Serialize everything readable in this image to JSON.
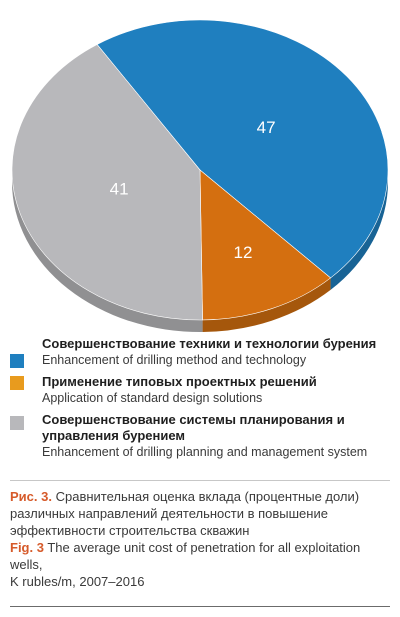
{
  "chart_data": {
    "type": "pie",
    "values": [
      47,
      12,
      41
    ],
    "labels": [
      "47",
      "12",
      "41"
    ],
    "colors": [
      "#1f7fbf",
      "#d46f10",
      "#b8b8bb"
    ],
    "title": ""
  },
  "legend": {
    "items": [
      {
        "ru": "Совершенствование техники и технологии бурения",
        "en": "Enhancement of drilling method and technology",
        "color": "#1f7fbf"
      },
      {
        "ru": "Применение типовых проектных решений",
        "en": "Application of standard design solutions",
        "color": "#e89b1e"
      },
      {
        "ru": "Совершенствование системы планирования и управления бурением",
        "en": "Enhancement of drilling planning and management system",
        "color": "#b8b8bb"
      }
    ]
  },
  "caption": {
    "ru_label": "Рис. 3.",
    "ru_text": "Сравнительная оценка вклада (процентные доли) различных направлений деятельности в повышение эффективности строительства скважин",
    "en_label": "Fig. 3",
    "en_text": "The average unit cost of penetration for all exploitation wells,",
    "en_text2": "K rubles/m, 2007–2016"
  }
}
